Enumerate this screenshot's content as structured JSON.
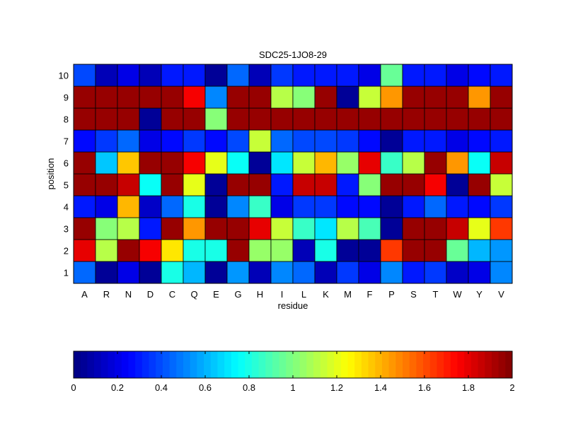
{
  "chart_data": {
    "type": "heatmap",
    "title": "SDC25-1JO8-29",
    "xlabel": "residue",
    "ylabel": "position",
    "x_categories": [
      "A",
      "R",
      "N",
      "D",
      "C",
      "Q",
      "E",
      "G",
      "H",
      "I",
      "L",
      "K",
      "M",
      "F",
      "P",
      "S",
      "T",
      "W",
      "Y",
      "V"
    ],
    "y_categories": [
      "1",
      "2",
      "3",
      "4",
      "5",
      "6",
      "7",
      "8",
      "9",
      "10"
    ],
    "values": [
      [
        0.45,
        0.05,
        0.2,
        0.05,
        0.8,
        0.6,
        0.05,
        0.55,
        0.1,
        0.5,
        0.45,
        0.1,
        0.35,
        0.2,
        0.5,
        0.3,
        0.35,
        0.15,
        0.2,
        0.5
      ],
      [
        1.8,
        1.1,
        1.95,
        1.75,
        1.3,
        0.8,
        0.8,
        1.95,
        1.05,
        1.05,
        0.1,
        0.8,
        0.05,
        0.05,
        1.65,
        1.95,
        1.95,
        0.95,
        0.6,
        0.55
      ],
      [
        1.95,
        1.0,
        1.1,
        0.3,
        1.95,
        1.45,
        1.95,
        1.95,
        1.8,
        1.15,
        0.85,
        0.7,
        1.1,
        0.9,
        0.05,
        1.95,
        1.95,
        1.85,
        1.2,
        1.65
      ],
      [
        0.3,
        0.2,
        1.4,
        0.15,
        0.45,
        0.8,
        0.05,
        0.5,
        0.85,
        0.2,
        0.35,
        0.35,
        0.25,
        0.25,
        0.05,
        0.3,
        0.45,
        0.3,
        0.25,
        0.35
      ],
      [
        1.95,
        1.95,
        1.85,
        0.75,
        1.95,
        1.2,
        0.05,
        1.95,
        1.95,
        0.3,
        1.85,
        1.85,
        0.3,
        1.0,
        1.95,
        1.95,
        1.75,
        0.05,
        1.95,
        1.15
      ],
      [
        1.95,
        0.65,
        1.35,
        1.95,
        1.95,
        1.75,
        1.2,
        0.75,
        0.05,
        0.7,
        1.15,
        1.4,
        1.05,
        1.8,
        0.85,
        1.1,
        1.95,
        1.45,
        0.75,
        1.85
      ],
      [
        0.25,
        0.35,
        0.45,
        0.2,
        0.25,
        0.35,
        0.25,
        0.4,
        1.15,
        0.45,
        0.4,
        0.4,
        0.35,
        0.25,
        0.05,
        0.3,
        0.3,
        0.2,
        0.25,
        0.3
      ],
      [
        1.95,
        1.95,
        1.95,
        0.05,
        1.95,
        1.95,
        1.0,
        1.95,
        1.95,
        1.95,
        1.95,
        1.95,
        1.95,
        1.95,
        1.95,
        1.95,
        1.95,
        1.95,
        1.95,
        1.95
      ],
      [
        1.95,
        1.95,
        1.95,
        1.95,
        1.95,
        1.75,
        0.5,
        1.95,
        1.95,
        1.1,
        1.0,
        1.95,
        0.05,
        1.15,
        1.45,
        1.95,
        1.95,
        1.95,
        1.45,
        1.95
      ],
      [
        0.4,
        0.1,
        0.2,
        0.1,
        0.3,
        0.3,
        0.05,
        0.45,
        0.1,
        0.35,
        0.3,
        0.3,
        0.3,
        0.2,
        0.95,
        0.3,
        0.3,
        0.2,
        0.25,
        0.3
      ]
    ],
    "colormap": "jet",
    "color_range": [
      0,
      2
    ],
    "colorbar": {
      "placement": "bottom",
      "ticks": [
        "0",
        "0.2",
        "0.4",
        "0.6",
        "0.8",
        "1",
        "1.2",
        "1.4",
        "1.6",
        "1.8",
        "2"
      ],
      "tick_values": [
        0,
        0.2,
        0.4,
        0.6,
        0.8,
        1,
        1.2,
        1.4,
        1.6,
        1.8,
        2
      ],
      "levels": 64
    },
    "grid": true,
    "cell_edge_color": "#000000"
  }
}
